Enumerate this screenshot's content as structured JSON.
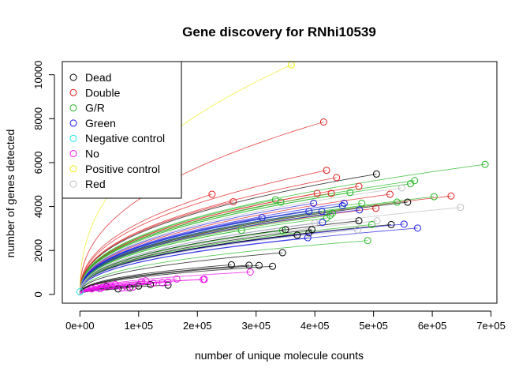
{
  "chart_data": {
    "type": "line",
    "title": "Gene discovery for RNhi10539",
    "xlabel": "number of unique molecule counts",
    "ylabel": "number of genes detected",
    "xlim": [
      -30000,
      710000
    ],
    "ylim": [
      -400,
      10600
    ],
    "x_ticks": [
      0,
      100000,
      200000,
      300000,
      400000,
      500000,
      600000,
      700000
    ],
    "x_tick_labels": [
      "0e+00",
      "1e+05",
      "2e+05",
      "3e+05",
      "4e+05",
      "5e+05",
      "6e+05",
      "7e+05"
    ],
    "y_ticks": [
      0,
      2000,
      4000,
      6000,
      8000,
      10000
    ],
    "y_tick_labels": [
      "0",
      "2000",
      "4000",
      "6000",
      "8000",
      "10000"
    ],
    "grid": false,
    "legend_position": "top-left",
    "legend": [
      {
        "label": "Dead",
        "color": "#000000"
      },
      {
        "label": "Double",
        "color": "#DF1A1A"
      },
      {
        "label": "G/R",
        "color": "#22B822"
      },
      {
        "label": "Green",
        "color": "#1A1AE6"
      },
      {
        "label": "Negative control",
        "color": "#1FE6E6"
      },
      {
        "label": "No",
        "color": "#EE14EE"
      },
      {
        "label": "Positive control",
        "color": "#EEEE1A"
      },
      {
        "label": "Red",
        "color": "#BEBEBE"
      }
    ],
    "series": [
      {
        "name": "Dead",
        "color": "#000000",
        "points": [
          [
            558000,
            4200
          ],
          [
            505000,
            5480
          ],
          [
            475000,
            3350
          ],
          [
            530000,
            3180
          ],
          [
            395000,
            2950
          ],
          [
            390000,
            2800
          ],
          [
            370000,
            2700
          ],
          [
            350000,
            2950
          ],
          [
            345000,
            1900
          ],
          [
            328000,
            1280
          ],
          [
            305000,
            1320
          ],
          [
            288000,
            1330
          ],
          [
            258000,
            1350
          ],
          [
            100000,
            380
          ],
          [
            85000,
            300
          ],
          [
            65000,
            250
          ],
          [
            120000,
            450
          ],
          [
            45000,
            350
          ],
          [
            150000,
            420
          ]
        ]
      },
      {
        "name": "Double",
        "color": "#DF1A1A",
        "points": [
          [
            415000,
            7850
          ],
          [
            420000,
            5650
          ],
          [
            437000,
            5320
          ],
          [
            475000,
            4920
          ],
          [
            528000,
            4560
          ],
          [
            632000,
            4480
          ],
          [
            404000,
            4600
          ],
          [
            428000,
            4600
          ],
          [
            225000,
            4560
          ],
          [
            261000,
            4220
          ],
          [
            504000,
            3920
          ]
        ]
      },
      {
        "name": "G/R",
        "color": "#22B822",
        "points": [
          [
            690000,
            5920
          ],
          [
            570000,
            5180
          ],
          [
            563000,
            5040
          ],
          [
            603000,
            4450
          ],
          [
            540000,
            4200
          ],
          [
            480000,
            4150
          ],
          [
            460000,
            4640
          ],
          [
            430000,
            3700
          ],
          [
            426000,
            3600
          ],
          [
            420000,
            3480
          ],
          [
            497000,
            3180
          ],
          [
            490000,
            2450
          ],
          [
            275000,
            2920
          ],
          [
            345000,
            2910
          ],
          [
            342000,
            4200
          ],
          [
            333000,
            4310
          ]
        ]
      },
      {
        "name": "Green",
        "color": "#1A1AE6",
        "points": [
          [
            398000,
            4150
          ],
          [
            450000,
            4150
          ],
          [
            447000,
            4040
          ],
          [
            390000,
            3780
          ],
          [
            412000,
            3780
          ],
          [
            476000,
            3850
          ],
          [
            310000,
            3500
          ],
          [
            413000,
            3280
          ],
          [
            552000,
            3200
          ],
          [
            575000,
            3020
          ],
          [
            388000,
            2580
          ]
        ]
      },
      {
        "name": "Negative control",
        "color": "#1FE6E6",
        "points": [
          [
            0,
            120
          ]
        ]
      },
      {
        "name": "No",
        "color": "#EE14EE",
        "points": [
          [
            290000,
            1020
          ],
          [
            212000,
            690
          ],
          [
            210000,
            680
          ],
          [
            165000,
            700
          ],
          [
            150000,
            560
          ],
          [
            140000,
            530
          ],
          [
            125000,
            510
          ],
          [
            112000,
            620
          ],
          [
            105000,
            580
          ],
          [
            90000,
            330
          ],
          [
            80000,
            310
          ],
          [
            72000,
            290
          ],
          [
            60000,
            450
          ],
          [
            52000,
            400
          ],
          [
            45000,
            380
          ],
          [
            38000,
            320
          ],
          [
            34000,
            260
          ],
          [
            28000,
            310
          ],
          [
            20000,
            250
          ]
        ]
      },
      {
        "name": "Positive control",
        "color": "#EEEE1A",
        "points": [
          [
            360000,
            10450
          ]
        ]
      },
      {
        "name": "Red",
        "color": "#BEBEBE",
        "points": [
          [
            648000,
            3960
          ],
          [
            548000,
            4850
          ],
          [
            506000,
            3350
          ],
          [
            473000,
            2940
          ],
          [
            400000,
            3250
          ]
        ]
      }
    ]
  }
}
